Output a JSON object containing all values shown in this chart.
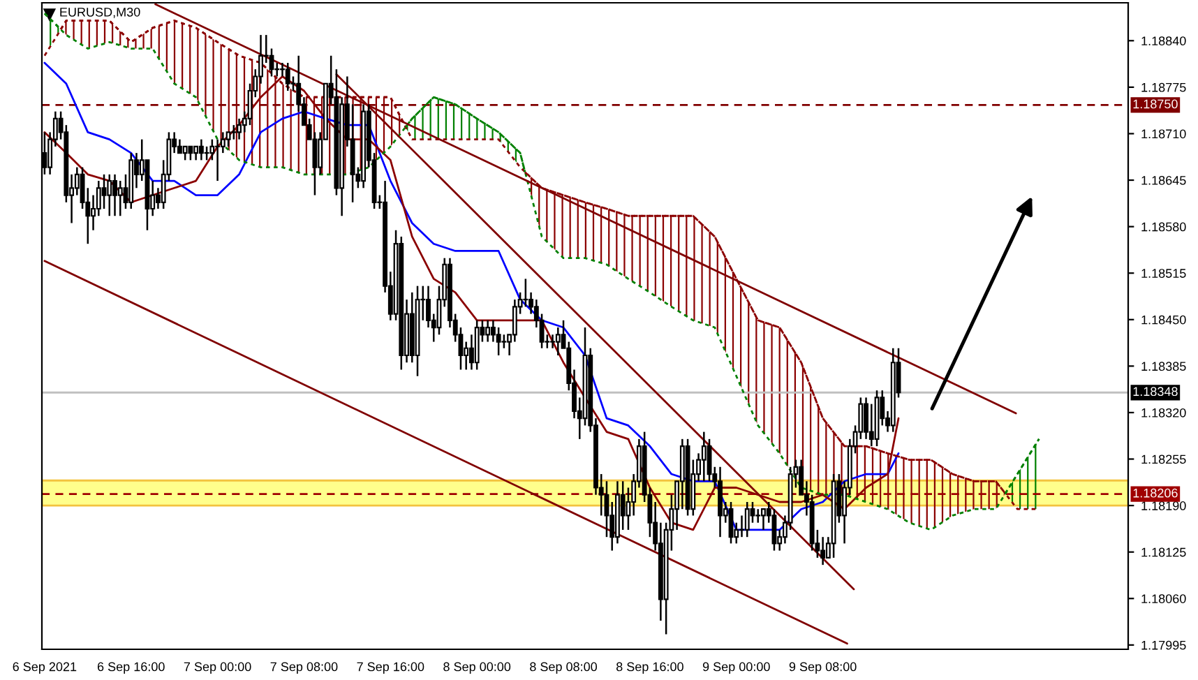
{
  "chart_data": {
    "type": "candlestick",
    "title": "EURUSD,M30",
    "x": [
      "2021-09-06T08:00",
      "2021-09-06T08:30",
      "2021-09-06T09:00",
      "2021-09-06T09:30",
      "2021-09-06T10:00",
      "2021-09-06T10:30",
      "2021-09-06T11:00",
      "2021-09-06T11:30",
      "2021-09-06T12:00",
      "2021-09-06T12:30",
      "2021-09-06T13:00",
      "2021-09-06T13:30",
      "2021-09-06T14:00",
      "2021-09-06T14:30",
      "2021-09-06T15:00",
      "2021-09-06T15:30",
      "2021-09-06T16:00",
      "2021-09-06T16:30",
      "2021-09-06T17:00",
      "2021-09-06T17:30",
      "2021-09-06T18:00",
      "2021-09-06T18:30",
      "2021-09-06T19:00",
      "2021-09-06T19:30",
      "2021-09-06T20:00",
      "2021-09-06T20:30",
      "2021-09-06T21:00",
      "2021-09-06T21:30",
      "2021-09-06T22:00",
      "2021-09-06T22:30",
      "2021-09-06T23:00",
      "2021-09-06T23:30",
      "2021-09-07T00:00",
      "2021-09-07T00:30",
      "2021-09-07T01:00",
      "2021-09-07T01:30",
      "2021-09-07T02:00",
      "2021-09-07T02:30",
      "2021-09-07T03:00",
      "2021-09-07T03:30",
      "2021-09-07T04:00",
      "2021-09-07T04:30",
      "2021-09-07T05:00",
      "2021-09-07T05:30",
      "2021-09-07T06:00",
      "2021-09-07T06:30",
      "2021-09-07T07:00",
      "2021-09-07T07:30",
      "2021-09-07T08:00",
      "2021-09-07T08:30",
      "2021-09-07T09:00",
      "2021-09-07T09:30",
      "2021-09-07T10:00",
      "2021-09-07T10:30",
      "2021-09-07T11:00",
      "2021-09-07T11:30",
      "2021-09-07T12:00",
      "2021-09-07T12:30",
      "2021-09-07T13:00",
      "2021-09-07T13:30",
      "2021-09-07T14:00",
      "2021-09-07T14:30",
      "2021-09-07T15:00",
      "2021-09-07T15:30",
      "2021-09-07T16:00",
      "2021-09-07T16:30",
      "2021-09-07T17:00",
      "2021-09-07T17:30",
      "2021-09-07T18:00",
      "2021-09-07T18:30",
      "2021-09-07T19:00",
      "2021-09-07T19:30",
      "2021-09-07T20:00",
      "2021-09-07T20:30",
      "2021-09-07T21:00",
      "2021-09-07T21:30",
      "2021-09-07T22:00",
      "2021-09-07T22:30",
      "2021-09-07T23:00",
      "2021-09-07T23:30",
      "2021-09-08T00:00",
      "2021-09-08T00:30",
      "2021-09-08T01:00",
      "2021-09-08T01:30",
      "2021-09-08T02:00",
      "2021-09-08T02:30",
      "2021-09-08T03:00",
      "2021-09-08T03:30",
      "2021-09-08T04:00",
      "2021-09-08T04:30",
      "2021-09-08T05:00",
      "2021-09-08T05:30",
      "2021-09-08T06:00",
      "2021-09-08T06:30",
      "2021-09-08T07:00",
      "2021-09-08T07:30",
      "2021-09-08T08:00",
      "2021-09-08T08:30",
      "2021-09-08T09:00",
      "2021-09-08T09:30",
      "2021-09-08T10:00",
      "2021-09-08T10:30",
      "2021-09-08T11:00",
      "2021-09-08T11:30",
      "2021-09-08T12:00",
      "2021-09-08T12:30",
      "2021-09-08T13:00",
      "2021-09-08T13:30",
      "2021-09-08T14:00",
      "2021-09-08T14:30",
      "2021-09-08T15:00",
      "2021-09-08T15:30",
      "2021-09-08T16:00",
      "2021-09-08T16:30",
      "2021-09-08T17:00",
      "2021-09-08T17:30",
      "2021-09-08T18:00",
      "2021-09-08T18:30",
      "2021-09-08T19:00",
      "2021-09-08T19:30",
      "2021-09-08T20:00",
      "2021-09-08T20:30",
      "2021-09-08T21:00",
      "2021-09-08T21:30",
      "2021-09-08T22:00",
      "2021-09-08T22:30",
      "2021-09-08T23:00",
      "2021-09-08T23:30",
      "2021-09-09T00:00",
      "2021-09-09T00:30",
      "2021-09-09T01:00",
      "2021-09-09T01:30",
      "2021-09-09T02:00",
      "2021-09-09T02:30",
      "2021-09-09T03:00",
      "2021-09-09T03:30",
      "2021-09-09T04:00",
      "2021-09-09T04:30",
      "2021-09-09T05:00",
      "2021-09-09T05:30",
      "2021-09-09T06:00",
      "2021-09-09T06:30",
      "2021-09-09T07:00",
      "2021-09-09T07:30",
      "2021-09-09T08:00",
      "2021-09-09T08:30",
      "2021-09-09T09:00",
      "2021-09-09T09:30",
      "2021-09-09T10:00",
      "2021-09-09T10:30",
      "2021-09-09T11:00",
      "2021-09-09T11:30",
      "2021-09-09T12:00",
      "2021-09-09T12:30",
      "2021-09-09T13:00",
      "2021-09-09T13:30",
      "2021-09-09T14:00",
      "2021-09-09T14:30",
      "2021-09-09T15:00"
    ],
    "ohlc": [
      [
        1.18683,
        1.18712,
        1.18653,
        1.18663
      ],
      [
        1.18663,
        1.18712,
        1.18653,
        1.18702
      ],
      [
        1.18702,
        1.18741,
        1.18692,
        1.18731
      ],
      [
        1.18731,
        1.18741,
        1.18702,
        1.18712
      ],
      [
        1.18712,
        1.18722,
        1.18614,
        1.18624
      ],
      [
        1.18624,
        1.18653,
        1.18585,
        1.18634
      ],
      [
        1.18634,
        1.18663,
        1.18624,
        1.18653
      ],
      [
        1.18653,
        1.18663,
        1.18605,
        1.18614
      ],
      [
        1.18614,
        1.18634,
        1.18556,
        1.18595
      ],
      [
        1.18595,
        1.18624,
        1.18575,
        1.18605
      ],
      [
        1.18605,
        1.18644,
        1.18595,
        1.18634
      ],
      [
        1.18634,
        1.18653,
        1.18605,
        1.18624
      ],
      [
        1.18624,
        1.18653,
        1.18595,
        1.18644
      ],
      [
        1.18644,
        1.18653,
        1.18595,
        1.18624
      ],
      [
        1.18624,
        1.18644,
        1.18595,
        1.18634
      ],
      [
        1.18634,
        1.18653,
        1.18605,
        1.18614
      ],
      [
        1.18614,
        1.18683,
        1.18605,
        1.18673
      ],
      [
        1.18673,
        1.18683,
        1.18634,
        1.18653
      ],
      [
        1.18653,
        1.18702,
        1.18644,
        1.18673
      ],
      [
        1.18673,
        1.18673,
        1.18575,
        1.18605
      ],
      [
        1.18605,
        1.18644,
        1.18595,
        1.18624
      ],
      [
        1.18624,
        1.18634,
        1.18605,
        1.18614
      ],
      [
        1.18614,
        1.18673,
        1.18605,
        1.18653
      ],
      [
        1.18653,
        1.18712,
        1.18644,
        1.18702
      ],
      [
        1.18702,
        1.18712,
        1.18683,
        1.18692
      ],
      [
        1.18692,
        1.18702,
        1.18683,
        1.18683
      ],
      [
        1.18683,
        1.18692,
        1.18673,
        1.18692
      ],
      [
        1.18692,
        1.18692,
        1.18673,
        1.18683
      ],
      [
        1.18683,
        1.18692,
        1.18673,
        1.18692
      ],
      [
        1.18692,
        1.18702,
        1.18673,
        1.18683
      ],
      [
        1.18683,
        1.18692,
        1.18673,
        1.18683
      ],
      [
        1.18683,
        1.18702,
        1.18673,
        1.18692
      ],
      [
        1.18692,
        1.18702,
        1.18644,
        1.18692
      ],
      [
        1.18692,
        1.18712,
        1.18683,
        1.18702
      ],
      [
        1.18702,
        1.18712,
        1.18692,
        1.18712
      ],
      [
        1.18712,
        1.18722,
        1.18702,
        1.18712
      ],
      [
        1.18712,
        1.18731,
        1.18702,
        1.18722
      ],
      [
        1.18722,
        1.18741,
        1.18712,
        1.18731
      ],
      [
        1.18731,
        1.1878,
        1.18722,
        1.1877
      ],
      [
        1.1877,
        1.188,
        1.18761,
        1.1879
      ],
      [
        1.1879,
        1.18848,
        1.1878,
        1.18819
      ],
      [
        1.18819,
        1.18848,
        1.18809,
        1.18819
      ],
      [
        1.18819,
        1.18829,
        1.1879,
        1.188
      ],
      [
        1.188,
        1.18809,
        1.1879,
        1.188
      ],
      [
        1.188,
        1.18809,
        1.1879,
        1.188
      ],
      [
        1.188,
        1.18809,
        1.1877,
        1.1878
      ],
      [
        1.1878,
        1.1879,
        1.1877,
        1.1878
      ],
      [
        1.1878,
        1.18819,
        1.18741,
        1.18751
      ],
      [
        1.18751,
        1.18761,
        1.18722,
        1.18722
      ],
      [
        1.18722,
        1.18731,
        1.18702,
        1.18702
      ],
      [
        1.18702,
        1.18712,
        1.18624,
        1.18663
      ],
      [
        1.18663,
        1.18712,
        1.18653,
        1.18702
      ],
      [
        1.18702,
        1.1878,
        1.18702,
        1.1878
      ],
      [
        1.1878,
        1.18819,
        1.18751,
        1.18761
      ],
      [
        1.18761,
        1.188,
        1.18624,
        1.18634
      ],
      [
        1.18634,
        1.18761,
        1.18595,
        1.18751
      ],
      [
        1.18751,
        1.1879,
        1.18692,
        1.18702
      ],
      [
        1.18702,
        1.18751,
        1.18614,
        1.18653
      ],
      [
        1.18653,
        1.18663,
        1.18634,
        1.18644
      ],
      [
        1.18644,
        1.18751,
        1.18634,
        1.18741
      ],
      [
        1.18741,
        1.18751,
        1.18663,
        1.18673
      ],
      [
        1.18673,
        1.18683,
        1.18605,
        1.18614
      ],
      [
        1.18614,
        1.18624,
        1.18605,
        1.18614
      ],
      [
        1.18614,
        1.18644,
        1.18488,
        1.18497
      ],
      [
        1.18497,
        1.18517,
        1.18449,
        1.18458
      ],
      [
        1.18458,
        1.18575,
        1.18449,
        1.18556
      ],
      [
        1.18556,
        1.18566,
        1.1838,
        1.184
      ],
      [
        1.184,
        1.18478,
        1.1839,
        1.18458
      ],
      [
        1.18458,
        1.18488,
        1.1839,
        1.184
      ],
      [
        1.184,
        1.18497,
        1.18371,
        1.18478
      ],
      [
        1.18478,
        1.18497,
        1.18449,
        1.18478
      ],
      [
        1.18478,
        1.18497,
        1.18439,
        1.18449
      ],
      [
        1.18449,
        1.18458,
        1.18419,
        1.18439
      ],
      [
        1.18439,
        1.18497,
        1.18429,
        1.18478
      ],
      [
        1.18478,
        1.18536,
        1.18468,
        1.18527
      ],
      [
        1.18527,
        1.18536,
        1.18439,
        1.18449
      ],
      [
        1.18449,
        1.18458,
        1.18419,
        1.18429
      ],
      [
        1.18429,
        1.18439,
        1.1838,
        1.184
      ],
      [
        1.184,
        1.18419,
        1.1838,
        1.1841
      ],
      [
        1.1841,
        1.18429,
        1.1838,
        1.1839
      ],
      [
        1.1839,
        1.18449,
        1.1838,
        1.18439
      ],
      [
        1.18439,
        1.18449,
        1.18419,
        1.18429
      ],
      [
        1.18429,
        1.18449,
        1.18419,
        1.18439
      ],
      [
        1.18439,
        1.18449,
        1.18419,
        1.18429
      ],
      [
        1.18429,
        1.18439,
        1.184,
        1.18419
      ],
      [
        1.18419,
        1.18429,
        1.1841,
        1.18419
      ],
      [
        1.18419,
        1.18429,
        1.184,
        1.18429
      ],
      [
        1.18429,
        1.18478,
        1.18419,
        1.18468
      ],
      [
        1.18468,
        1.18488,
        1.18458,
        1.18478
      ],
      [
        1.18478,
        1.18507,
        1.18468,
        1.18478
      ],
      [
        1.18478,
        1.18488,
        1.18458,
        1.18468
      ],
      [
        1.18468,
        1.18478,
        1.18439,
        1.18449
      ],
      [
        1.18449,
        1.18458,
        1.1841,
        1.18419
      ],
      [
        1.18419,
        1.18429,
        1.1841,
        1.18419
      ],
      [
        1.18419,
        1.18429,
        1.1841,
        1.18419
      ],
      [
        1.18419,
        1.18439,
        1.184,
        1.18429
      ],
      [
        1.18429,
        1.18449,
        1.1841,
        1.1841
      ],
      [
        1.1841,
        1.18419,
        1.18351,
        1.18361
      ],
      [
        1.18361,
        1.1838,
        1.18312,
        1.18322
      ],
      [
        1.18322,
        1.18341,
        1.18283,
        1.18312
      ],
      [
        1.18312,
        1.18439,
        1.18302,
        1.184
      ],
      [
        1.184,
        1.1841,
        1.18293,
        1.18302
      ],
      [
        1.18302,
        1.18312,
        1.18205,
        1.18215
      ],
      [
        1.18215,
        1.18234,
        1.18176,
        1.18205
      ],
      [
        1.18205,
        1.18224,
        1.18146,
        1.18176
      ],
      [
        1.18176,
        1.18195,
        1.18127,
        1.18146
      ],
      [
        1.18146,
        1.18224,
        1.18137,
        1.18205
      ],
      [
        1.18205,
        1.18224,
        1.18156,
        1.18176
      ],
      [
        1.18176,
        1.18215,
        1.18156,
        1.18195
      ],
      [
        1.18195,
        1.18234,
        1.18176,
        1.18224
      ],
      [
        1.18224,
        1.18283,
        1.18215,
        1.18273
      ],
      [
        1.18273,
        1.18293,
        1.18195,
        1.18205
      ],
      [
        1.18205,
        1.18215,
        1.18146,
        1.18166
      ],
      [
        1.18166,
        1.18195,
        1.18127,
        1.18137
      ],
      [
        1.18137,
        1.18166,
        1.18029,
        1.18059
      ],
      [
        1.18059,
        1.18166,
        1.1801,
        1.18156
      ],
      [
        1.18156,
        1.18205,
        1.18127,
        1.18185
      ],
      [
        1.18185,
        1.18224,
        1.18156,
        1.18224
      ],
      [
        1.18224,
        1.18283,
        1.18185,
        1.18273
      ],
      [
        1.18273,
        1.18283,
        1.18176,
        1.18185
      ],
      [
        1.18185,
        1.18254,
        1.18176,
        1.18234
      ],
      [
        1.18234,
        1.18263,
        1.18224,
        1.18254
      ],
      [
        1.18254,
        1.18293,
        1.18224,
        1.18273
      ],
      [
        1.18273,
        1.18283,
        1.18224,
        1.18234
      ],
      [
        1.18234,
        1.18244,
        1.18215,
        1.18224
      ],
      [
        1.18224,
        1.18244,
        1.18146,
        1.18176
      ],
      [
        1.18176,
        1.18195,
        1.18166,
        1.18185
      ],
      [
        1.18185,
        1.18195,
        1.18137,
        1.18146
      ],
      [
        1.18146,
        1.18166,
        1.18137,
        1.18156
      ],
      [
        1.18156,
        1.18176,
        1.18146,
        1.18156
      ],
      [
        1.18156,
        1.18195,
        1.18146,
        1.18185
      ],
      [
        1.18185,
        1.18195,
        1.18166,
        1.18176
      ],
      [
        1.18176,
        1.18185,
        1.18166,
        1.18176
      ],
      [
        1.18176,
        1.18185,
        1.18156,
        1.18185
      ],
      [
        1.18185,
        1.18195,
        1.18166,
        1.18176
      ],
      [
        1.18176,
        1.18185,
        1.18127,
        1.18137
      ],
      [
        1.18137,
        1.18156,
        1.18127,
        1.18146
      ],
      [
        1.18146,
        1.18176,
        1.18137,
        1.18166
      ],
      [
        1.18166,
        1.18244,
        1.18156,
        1.18234
      ],
      [
        1.18234,
        1.18254,
        1.18215,
        1.18244
      ],
      [
        1.18244,
        1.18254,
        1.18205,
        1.18205
      ],
      [
        1.18205,
        1.18224,
        1.18176,
        1.18195
      ],
      [
        1.18195,
        1.18205,
        1.18127,
        1.18137
      ],
      [
        1.18137,
        1.18156,
        1.18117,
        1.18127
      ],
      [
        1.18127,
        1.18146,
        1.18107,
        1.18117
      ],
      [
        1.18117,
        1.18146,
        1.18117,
        1.18137
      ],
      [
        1.18137,
        1.18234,
        1.18117,
        1.18224
      ],
      [
        1.18224,
        1.18234,
        1.18166,
        1.18176
      ],
      [
        1.18176,
        1.18224,
        1.18137,
        1.18215
      ],
      [
        1.18215,
        1.18283,
        1.18205,
        1.18273
      ],
      [
        1.18273,
        1.18302,
        1.18263,
        1.18293
      ],
      [
        1.18293,
        1.18341,
        1.18283,
        1.18332
      ],
      [
        1.18332,
        1.18341,
        1.18283,
        1.18293
      ],
      [
        1.18293,
        1.18332,
        1.18273,
        1.18283
      ],
      [
        1.18283,
        1.18351,
        1.18273,
        1.18341
      ],
      [
        1.18341,
        1.18351,
        1.18302,
        1.18312
      ],
      [
        1.18312,
        1.18322,
        1.18293,
        1.18302
      ],
      [
        1.18302,
        1.1841,
        1.18293,
        1.1839
      ],
      [
        1.1839,
        1.1841,
        1.18341,
        1.18348
      ]
    ],
    "series": [
      {
        "type": "line",
        "color": "#0000ff",
        "line_style": "solid",
        "x": [
          "2021-09-06T08:00",
          "2021-09-06T10:00",
          "2021-09-06T12:00",
          "2021-09-06T14:00",
          "2021-09-06T16:00",
          "2021-09-06T18:00",
          "2021-09-06T20:00",
          "2021-09-06T22:00",
          "2021-09-07T00:00",
          "2021-09-07T02:00",
          "2021-09-07T04:00",
          "2021-09-07T06:00",
          "2021-09-07T08:00",
          "2021-09-07T10:00",
          "2021-09-07T12:00",
          "2021-09-07T14:00",
          "2021-09-07T16:00",
          "2021-09-07T18:00",
          "2021-09-07T20:00",
          "2021-09-07T22:00",
          "2021-09-08T00:00",
          "2021-09-08T02:00",
          "2021-09-08T04:00",
          "2021-09-08T06:00",
          "2021-09-08T08:00",
          "2021-09-08T10:00",
          "2021-09-08T12:00",
          "2021-09-08T14:00",
          "2021-09-08T16:00",
          "2021-09-08T18:00",
          "2021-09-08T20:00",
          "2021-09-08T22:00",
          "2021-09-09T00:00",
          "2021-09-09T02:00",
          "2021-09-09T04:00",
          "2021-09-09T06:00",
          "2021-09-09T08:00",
          "2021-09-09T10:00",
          "2021-09-09T12:00",
          "2021-09-09T14:00",
          "2021-09-09T15:00"
        ],
        "values": [
          1.18809,
          1.1878,
          1.18712,
          1.18702,
          1.18683,
          1.18644,
          1.18644,
          1.18624,
          1.18624,
          1.18653,
          1.18712,
          1.18731,
          1.18741,
          1.18731,
          1.18722,
          1.18722,
          1.18644,
          1.18585,
          1.18556,
          1.18546,
          1.18546,
          1.18546,
          1.18478,
          1.18449,
          1.18439,
          1.184,
          1.18312,
          1.18302,
          1.18273,
          1.18234,
          1.18224,
          1.18224,
          1.18156,
          1.18156,
          1.18156,
          1.18185,
          1.18195,
          1.18224,
          1.18234,
          1.18234,
          1.18263
        ]
      },
      {
        "type": "line",
        "color": "#8b0000",
        "line_style": "solid",
        "x": [
          "2021-09-06T08:00",
          "2021-09-06T10:00",
          "2021-09-06T12:00",
          "2021-09-06T14:00",
          "2021-09-06T16:00",
          "2021-09-06T18:00",
          "2021-09-06T20:00",
          "2021-09-06T22:00",
          "2021-09-07T00:00",
          "2021-09-07T02:00",
          "2021-09-07T04:00",
          "2021-09-07T06:00",
          "2021-09-07T08:00",
          "2021-09-07T10:00",
          "2021-09-07T12:00",
          "2021-09-07T14:00",
          "2021-09-07T16:00",
          "2021-09-07T18:00",
          "2021-09-07T20:00",
          "2021-09-07T22:00",
          "2021-09-08T00:00",
          "2021-09-08T02:00",
          "2021-09-08T04:00",
          "2021-09-08T06:00",
          "2021-09-08T08:00",
          "2021-09-08T10:00",
          "2021-09-08T12:00",
          "2021-09-08T14:00",
          "2021-09-08T16:00",
          "2021-09-08T18:00",
          "2021-09-08T20:00",
          "2021-09-08T22:00",
          "2021-09-09T00:00",
          "2021-09-09T02:00",
          "2021-09-09T04:00",
          "2021-09-09T06:00",
          "2021-09-09T08:00",
          "2021-09-09T10:00",
          "2021-09-09T12:00",
          "2021-09-09T14:00",
          "2021-09-09T15:00"
        ],
        "values": [
          1.18712,
          1.18683,
          1.18653,
          1.18644,
          1.18614,
          1.18624,
          1.18634,
          1.18644,
          1.18692,
          1.18722,
          1.18761,
          1.1879,
          1.1877,
          1.18731,
          1.18702,
          1.18702,
          1.18673,
          1.18566,
          1.18507,
          1.18488,
          1.18449,
          1.18449,
          1.18449,
          1.18449,
          1.1839,
          1.18341,
          1.18293,
          1.18283,
          1.18215,
          1.18166,
          1.18156,
          1.18215,
          1.18215,
          1.18205,
          1.18195,
          1.18195,
          1.18205,
          1.18185,
          1.18215,
          1.18234,
          1.18312
        ]
      },
      {
        "type": "line",
        "color": "#008000",
        "line_style": "dotted",
        "x": [
          "2021-09-06T08:00",
          "2021-09-06T10:00",
          "2021-09-06T12:00",
          "2021-09-06T14:00",
          "2021-09-06T16:00",
          "2021-09-06T18:00",
          "2021-09-06T20:00",
          "2021-09-06T22:00",
          "2021-09-07T00:00",
          "2021-09-07T02:00",
          "2021-09-07T04:00",
          "2021-09-07T06:00",
          "2021-09-07T08:00",
          "2021-09-07T10:00",
          "2021-09-07T12:00",
          "2021-09-07T14:00",
          "2021-09-07T16:00",
          "2021-09-07T18:00",
          "2021-09-07T20:00",
          "2021-09-07T22:00",
          "2021-09-08T00:00",
          "2021-09-08T02:00",
          "2021-09-08T04:00",
          "2021-09-08T06:00",
          "2021-09-08T08:00",
          "2021-09-08T10:00",
          "2021-09-08T12:00",
          "2021-09-08T14:00",
          "2021-09-08T16:00",
          "2021-09-08T18:00",
          "2021-09-08T20:00",
          "2021-09-08T22:00",
          "2021-09-09T00:00",
          "2021-09-09T02:00",
          "2021-09-09T04:00",
          "2021-09-09T06:00",
          "2021-09-09T08:00",
          "2021-09-09T10:00",
          "2021-09-09T12:00",
          "2021-09-09T14:00",
          "2021-09-09T16:00",
          "2021-09-09T18:00",
          "2021-09-09T20:00",
          "2021-09-09T22:00",
          "2021-09-10T00:00",
          "2021-09-10T02:00",
          "2021-09-10T04:00"
        ],
        "values": [
          1.18878,
          1.18848,
          1.18829,
          1.18838,
          1.18829,
          1.18829,
          1.1878,
          1.18761,
          1.18702,
          1.18673,
          1.18663,
          1.18663,
          1.18653,
          1.18653,
          1.18653,
          1.18663,
          1.18692,
          1.18731,
          1.18761,
          1.18751,
          1.18731,
          1.18712,
          1.18683,
          1.18566,
          1.18536,
          1.18536,
          1.18527,
          1.18507,
          1.18488,
          1.18468,
          1.18449,
          1.18439,
          1.18371,
          1.18302,
          1.18263,
          1.18215,
          1.18205,
          1.18205,
          1.18195,
          1.18185,
          1.18166,
          1.18156,
          1.18176,
          1.18185,
          1.18185,
          1.18234,
          1.18283
        ]
      },
      {
        "type": "line",
        "color": "#8b0000",
        "line_style": "dotted",
        "x": [
          "2021-09-06T08:00",
          "2021-09-06T10:00",
          "2021-09-06T12:00",
          "2021-09-06T14:00",
          "2021-09-06T16:00",
          "2021-09-06T18:00",
          "2021-09-06T20:00",
          "2021-09-06T22:00",
          "2021-09-07T00:00",
          "2021-09-07T02:00",
          "2021-09-07T04:00",
          "2021-09-07T06:00",
          "2021-09-07T08:00",
          "2021-09-07T10:00",
          "2021-09-07T12:00",
          "2021-09-07T14:00",
          "2021-09-07T16:00",
          "2021-09-07T18:00",
          "2021-09-07T20:00",
          "2021-09-07T22:00",
          "2021-09-08T00:00",
          "2021-09-08T02:00",
          "2021-09-08T04:00",
          "2021-09-08T06:00",
          "2021-09-08T08:00",
          "2021-09-08T10:00",
          "2021-09-08T12:00",
          "2021-09-08T14:00",
          "2021-09-08T16:00",
          "2021-09-08T18:00",
          "2021-09-08T20:00",
          "2021-09-08T22:00",
          "2021-09-09T00:00",
          "2021-09-09T02:00",
          "2021-09-09T04:00",
          "2021-09-09T06:00",
          "2021-09-09T08:00",
          "2021-09-09T10:00",
          "2021-09-09T12:00",
          "2021-09-09T14:00",
          "2021-09-09T16:00",
          "2021-09-09T18:00",
          "2021-09-09T20:00",
          "2021-09-09T22:00",
          "2021-09-10T00:00",
          "2021-09-10T02:00",
          "2021-09-10T04:00"
        ],
        "values": [
          1.18819,
          1.18868,
          1.18868,
          1.18868,
          1.18838,
          1.18858,
          1.18868,
          1.18858,
          1.18838,
          1.18819,
          1.18809,
          1.1878,
          1.18761,
          1.18761,
          1.18761,
          1.18761,
          1.18761,
          1.18702,
          1.18702,
          1.18702,
          1.18702,
          1.18702,
          1.18663,
          1.18634,
          1.18624,
          1.18614,
          1.18605,
          1.18595,
          1.18595,
          1.18595,
          1.18595,
          1.18566,
          1.18507,
          1.18449,
          1.18439,
          1.1839,
          1.18312,
          1.18273,
          1.18273,
          1.18263,
          1.18254,
          1.18254,
          1.18234,
          1.18224,
          1.18224,
          1.18185,
          1.18185
        ]
      },
      {
        "type": "line",
        "color": "#008000",
        "line_style": "dotted",
        "x": [
          "2021-09-06T08:00",
          "2021-09-06T09:30"
        ],
        "values": [
          1.18878,
          1.18856
        ],
        "upper": [
          1.18878,
          1.18856
        ],
        "lower": [
          1.18819,
          1.18856
        ]
      },
      {
        "type": "line",
        "color": "#8b0000",
        "line_style": "dotted",
        "x": [
          "2021-09-06T09:30",
          "2021-09-06T10:00",
          "2021-09-06T12:00",
          "2021-09-06T14:00",
          "2021-09-06T16:00",
          "2021-09-06T18:00",
          "2021-09-06T20:00",
          "2021-09-06T22:00",
          "2021-09-07T00:00",
          "2021-09-07T02:00",
          "2021-09-07T04:00",
          "2021-09-07T06:00",
          "2021-09-07T08:00",
          "2021-09-07T10:00",
          "2021-09-07T12:00",
          "2021-09-07T14:00",
          "2021-09-07T16:00",
          "2021-09-07T17:24"
        ],
        "values": [
          1.18856,
          1.18868,
          1.18868,
          1.18868,
          1.18838,
          1.18858,
          1.18868,
          1.18858,
          1.18838,
          1.18819,
          1.18809,
          1.1878,
          1.18761,
          1.18761,
          1.18761,
          1.18761,
          1.18761,
          1.18719
        ],
        "upper": [
          1.18856,
          1.18868,
          1.18868,
          1.18868,
          1.18838,
          1.18858,
          1.18868,
          1.18858,
          1.18838,
          1.18819,
          1.18809,
          1.1878,
          1.18761,
          1.18761,
          1.18761,
          1.18761,
          1.18761,
          1.18719
        ],
        "lower": [
          1.18856,
          1.18848,
          1.18829,
          1.18838,
          1.18829,
          1.18829,
          1.1878,
          1.18761,
          1.18702,
          1.18673,
          1.18663,
          1.18663,
          1.18653,
          1.18653,
          1.18653,
          1.18663,
          1.18692,
          1.18719
        ]
      },
      {
        "type": "line",
        "color": "#008000",
        "line_style": "dotted",
        "x": [
          "2021-09-07T17:24",
          "2021-09-07T18:00",
          "2021-09-07T20:00",
          "2021-09-07T22:00",
          "2021-09-08T00:00",
          "2021-09-08T02:00",
          "2021-09-08T04:00",
          "2021-09-08T04:27"
        ],
        "values": [
          1.18719,
          1.18731,
          1.18761,
          1.18751,
          1.18731,
          1.18712,
          1.18683,
          1.18656
        ],
        "upper": [
          1.18719,
          1.18731,
          1.18761,
          1.18751,
          1.18731,
          1.18712,
          1.18683,
          1.18656
        ],
        "lower": [
          1.18719,
          1.18702,
          1.18702,
          1.18702,
          1.18702,
          1.18702,
          1.18663,
          1.18656
        ]
      },
      {
        "type": "line",
        "color": "#8b0000",
        "line_style": "dotted",
        "x": [
          "2021-09-08T04:27",
          "2021-09-08T06:00",
          "2021-09-08T08:00",
          "2021-09-08T10:00",
          "2021-09-08T12:00",
          "2021-09-08T14:00",
          "2021-09-08T16:00",
          "2021-09-08T18:00",
          "2021-09-08T20:00",
          "2021-09-08T22:00",
          "2021-09-09T00:00",
          "2021-09-09T02:00",
          "2021-09-09T04:00",
          "2021-09-09T06:00",
          "2021-09-09T08:00",
          "2021-09-09T10:00",
          "2021-09-09T12:00",
          "2021-09-09T14:00",
          "2021-09-09T16:00",
          "2021-09-09T18:00",
          "2021-09-09T20:00",
          "2021-09-09T22:00",
          "2021-09-10T00:00",
          "2021-09-10T00:53"
        ],
        "values": [
          1.18656,
          1.18634,
          1.18624,
          1.18614,
          1.18605,
          1.18595,
          1.18595,
          1.18595,
          1.18595,
          1.18566,
          1.18507,
          1.18449,
          1.18439,
          1.1839,
          1.18312,
          1.18273,
          1.18273,
          1.18263,
          1.18254,
          1.18254,
          1.18234,
          1.18224,
          1.18224,
          1.18207
        ],
        "upper": [
          1.18656,
          1.18634,
          1.18624,
          1.18614,
          1.18605,
          1.18595,
          1.18595,
          1.18595,
          1.18595,
          1.18566,
          1.18507,
          1.18449,
          1.18439,
          1.1839,
          1.18312,
          1.18273,
          1.18273,
          1.18263,
          1.18254,
          1.18254,
          1.18234,
          1.18224,
          1.18224,
          1.18207
        ],
        "lower": [
          1.18656,
          1.18566,
          1.18536,
          1.18536,
          1.18527,
          1.18507,
          1.18488,
          1.18468,
          1.18449,
          1.18439,
          1.18371,
          1.18302,
          1.18263,
          1.18215,
          1.18205,
          1.18205,
          1.18195,
          1.18185,
          1.18166,
          1.18156,
          1.18176,
          1.18185,
          1.18185,
          1.18207
        ]
      },
      {
        "type": "line",
        "color": "#008000",
        "line_style": "dotted",
        "x": [
          "2021-09-10T00:53",
          "2021-09-10T02:00",
          "2021-09-10T04:00"
        ],
        "values": [
          1.18207,
          1.18234,
          1.18283
        ],
        "upper": [
          1.18207,
          1.18234,
          1.18283
        ],
        "lower": [
          1.18207,
          1.18185,
          1.18185
        ]
      },
      {
        "type": "line",
        "color": "#800000",
        "line_style": "solid",
        "x": [
          "2021-09-06T18:15",
          "2021-09-10T01:52"
        ],
        "values": [
          1.18891,
          1.18319
        ]
      },
      {
        "type": "line",
        "color": "#800000",
        "line_style": "solid",
        "x": [
          "2021-09-06T08:00",
          "2021-09-09T10:15"
        ],
        "values": [
          1.18532,
          1.17997
        ]
      },
      {
        "type": "line",
        "color": "#800000",
        "line_style": "solid",
        "x": [
          "2021-09-07T11:00",
          "2021-09-09T10:52"
        ],
        "values": [
          1.18793,
          1.18073
        ]
      }
    ],
    "ref_lines": [
      {
        "axis": "y",
        "value": 1.1875,
        "label": "1.18750",
        "color": "#800000",
        "line_style": "dashed"
      },
      {
        "axis": "y",
        "value": 1.18348,
        "label": "1.18348",
        "color": "#c0c0c0",
        "line_style": "solid"
      },
      {
        "axis": "y",
        "value": 1.18206,
        "label": "1.18206",
        "color": "#a00000",
        "line_style": "dashed"
      }
    ],
    "bands": [
      {
        "axis": "y",
        "from": 1.1819,
        "to": 1.18225,
        "color": "#ffff66"
      }
    ],
    "xlim": [
      "2021-09-06T07:45",
      "2021-09-10T12:15"
    ],
    "xticks": [
      {
        "value": "2021-09-06T08:00",
        "label": "6 Sep 2021"
      },
      {
        "value": "2021-09-06T16:00",
        "label": "6 Sep 16:00"
      },
      {
        "value": "2021-09-07T00:00",
        "label": "7 Sep 00:00"
      },
      {
        "value": "2021-09-07T08:00",
        "label": "7 Sep 08:00"
      },
      {
        "value": "2021-09-07T16:00",
        "label": "7 Sep 16:00"
      },
      {
        "value": "2021-09-08T00:00",
        "label": "8 Sep 00:00"
      },
      {
        "value": "2021-09-08T08:00",
        "label": "8 Sep 08:00"
      },
      {
        "value": "2021-09-08T16:00",
        "label": "8 Sep 16:00"
      },
      {
        "value": "2021-09-09T00:00",
        "label": "9 Sep 00:00"
      },
      {
        "value": "2021-09-09T08:00",
        "label": "9 Sep 08:00"
      }
    ],
    "ylim": [
      1.17989,
      1.18893
    ],
    "yticks": [
      {
        "value": 1.1884,
        "label": "1.18840"
      },
      {
        "value": 1.18775,
        "label": "1.18775"
      },
      {
        "value": 1.1871,
        "label": "1.18710"
      },
      {
        "value": 1.18645,
        "label": "1.18645"
      },
      {
        "value": 1.1858,
        "label": "1.18580"
      },
      {
        "value": 1.18515,
        "label": "1.18515"
      },
      {
        "value": 1.1845,
        "label": "1.18450"
      },
      {
        "value": 1.18385,
        "label": "1.18385"
      },
      {
        "value": 1.1832,
        "label": "1.18320"
      },
      {
        "value": 1.18255,
        "label": "1.18255"
      },
      {
        "value": 1.1819,
        "label": "1.18190"
      },
      {
        "value": 1.18125,
        "label": "1.18125"
      },
      {
        "value": 1.1806,
        "label": "1.18060"
      },
      {
        "value": 1.17995,
        "label": "1.17995"
      }
    ]
  }
}
